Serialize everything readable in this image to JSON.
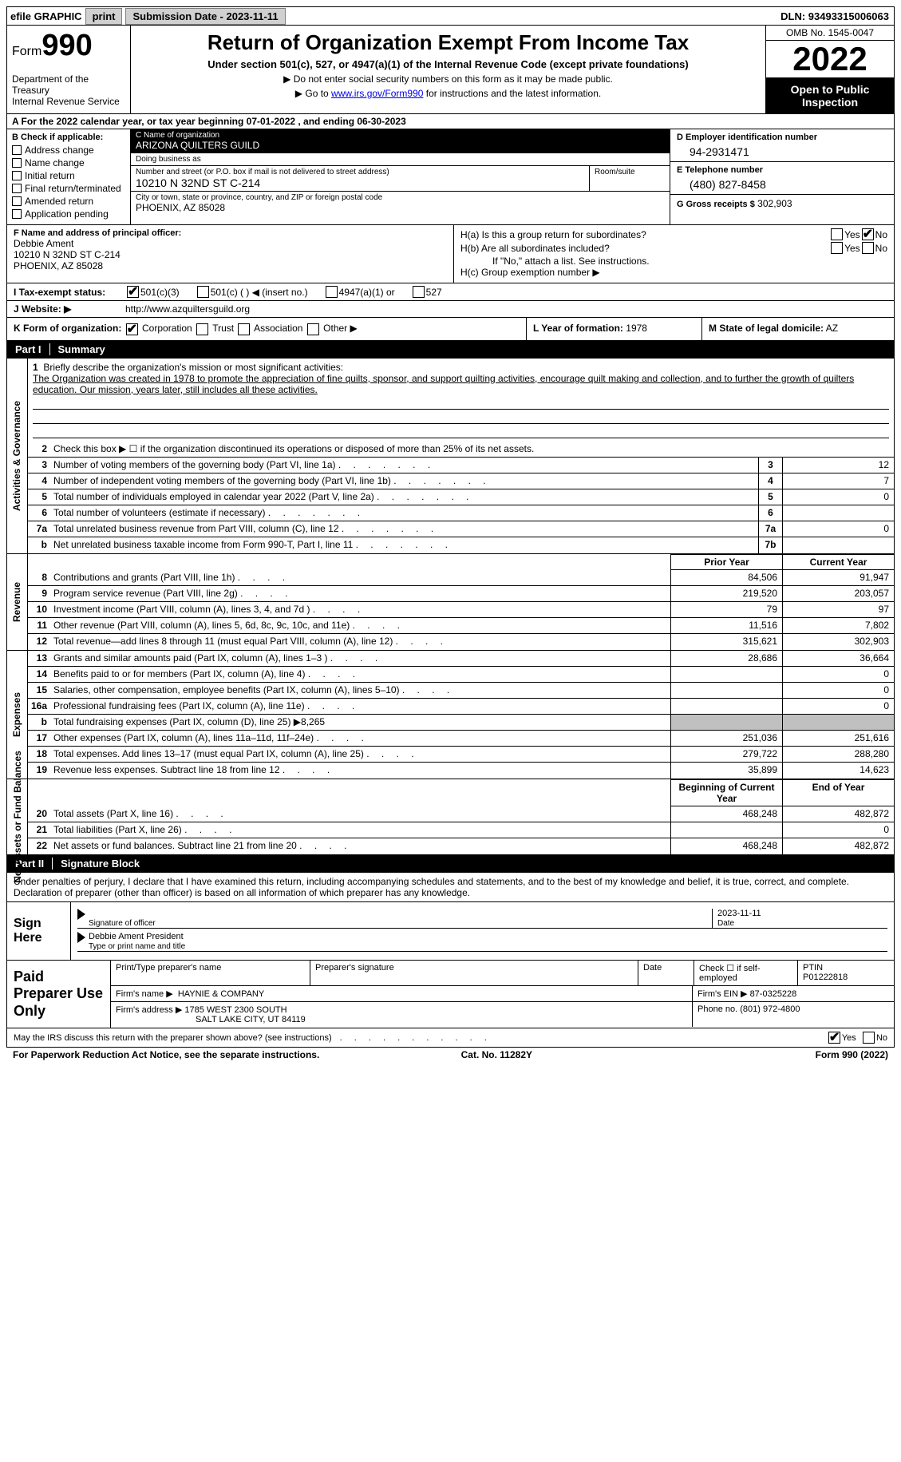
{
  "topbar": {
    "efile_label": "efile GRAPHIC",
    "print_btn": "print",
    "submission_label": "Submission Date - 2023-11-11",
    "dln_label": "DLN: 93493315006063"
  },
  "header": {
    "form_word": "Form",
    "form_num": "990",
    "dept": "Department of the Treasury\nInternal Revenue Service",
    "title": "Return of Organization Exempt From Income Tax",
    "subtitle": "Under section 501(c), 527, or 4947(a)(1) of the Internal Revenue Code (except private foundations)",
    "note1": "▶ Do not enter social security numbers on this form as it may be made public.",
    "note2_pre": "▶ Go to ",
    "note2_link": "www.irs.gov/Form990",
    "note2_post": " for instructions and the latest information.",
    "omb": "OMB No. 1545-0047",
    "year": "2022",
    "open": "Open to Public Inspection"
  },
  "rowA": "A  For the 2022 calendar year, or tax year beginning 07-01-2022   , and ending 06-30-2023",
  "blockB": {
    "label": "B Check if applicable:",
    "items": [
      "Address change",
      "Name change",
      "Initial return",
      "Final return/terminated",
      "Amended return",
      "Application pending"
    ]
  },
  "blockC": {
    "name_lbl": "C Name of organization",
    "name": "ARIZONA QUILTERS GUILD",
    "dba_lbl": "Doing business as",
    "dba": "",
    "addr_lbl": "Number and street (or P.O. box if mail is not delivered to street address)",
    "addr": "10210 N 32ND ST C-214",
    "room_lbl": "Room/suite",
    "room": "",
    "city_lbl": "City or town, state or province, country, and ZIP or foreign postal code",
    "city": "PHOENIX, AZ  85028"
  },
  "blockD": {
    "ein_lbl": "D Employer identification number",
    "ein": "94-2931471",
    "tel_lbl": "E Telephone number",
    "tel": "(480) 827-8458",
    "gross_lbl": "G Gross receipts $",
    "gross": "302,903"
  },
  "blockF": {
    "lbl": "F  Name and address of principal officer:",
    "name": "Debbie Ament",
    "addr1": "10210 N 32ND ST C-214",
    "addr2": "PHOENIX, AZ  85028"
  },
  "blockH": {
    "a_lbl": "H(a)  Is this a group return for subordinates?",
    "a_yes": "Yes",
    "a_no": "No",
    "b_lbl": "H(b)  Are all subordinates included?",
    "b_note": "If \"No,\" attach a list. See instructions.",
    "c_lbl": "H(c)  Group exemption number ▶"
  },
  "rowI": {
    "lbl": "I   Tax-exempt status:",
    "opts": [
      "501(c)(3)",
      "501(c) (  ) ◀ (insert no.)",
      "4947(a)(1) or",
      "527"
    ]
  },
  "rowJ": {
    "lbl": "J   Website: ▶",
    "val": "http://www.azquiltersguild.org"
  },
  "rowK": {
    "lbl": "K Form of organization:",
    "opts": [
      "Corporation",
      "Trust",
      "Association",
      "Other ▶"
    ]
  },
  "rowL": {
    "lbl": "L Year of formation:",
    "val": "1978"
  },
  "rowM": {
    "lbl": "M State of legal domicile:",
    "val": "AZ"
  },
  "partI": {
    "num": "Part I",
    "title": "Summary"
  },
  "mission": {
    "line1_num": "1",
    "line1_lbl": "Briefly describe the organization's mission or most significant activities:",
    "text": "The Organization was created in 1978 to promote the appreciation of fine quilts, sponsor, and support quilting activities, encourage quilt making and collection, and to further the growth of quilters education. Our mission, years later, still includes all these activities."
  },
  "gov": {
    "tab": "Activities & Governance",
    "l2": "Check this box ▶ ☐  if the organization discontinued its operations or disposed of more than 25% of its net assets.",
    "rows": [
      {
        "n": "3",
        "t": "Number of voting members of the governing body (Part VI, line 1a)",
        "b": "3",
        "v": "12"
      },
      {
        "n": "4",
        "t": "Number of independent voting members of the governing body (Part VI, line 1b)",
        "b": "4",
        "v": "7"
      },
      {
        "n": "5",
        "t": "Total number of individuals employed in calendar year 2022 (Part V, line 2a)",
        "b": "5",
        "v": "0"
      },
      {
        "n": "6",
        "t": "Total number of volunteers (estimate if necessary)",
        "b": "6",
        "v": ""
      },
      {
        "n": "7a",
        "t": "Total unrelated business revenue from Part VIII, column (C), line 12",
        "b": "7a",
        "v": "0"
      },
      {
        "n": "b",
        "t": "Net unrelated business taxable income from Form 990-T, Part I, line 11",
        "b": "7b",
        "v": ""
      }
    ]
  },
  "rev": {
    "tab": "Revenue",
    "hdr_prior": "Prior Year",
    "hdr_curr": "Current Year",
    "rows": [
      {
        "n": "8",
        "t": "Contributions and grants (Part VIII, line 1h)",
        "p": "84,506",
        "c": "91,947"
      },
      {
        "n": "9",
        "t": "Program service revenue (Part VIII, line 2g)",
        "p": "219,520",
        "c": "203,057"
      },
      {
        "n": "10",
        "t": "Investment income (Part VIII, column (A), lines 3, 4, and 7d )",
        "p": "79",
        "c": "97"
      },
      {
        "n": "11",
        "t": "Other revenue (Part VIII, column (A), lines 5, 6d, 8c, 9c, 10c, and 11e)",
        "p": "11,516",
        "c": "7,802"
      },
      {
        "n": "12",
        "t": "Total revenue—add lines 8 through 11 (must equal Part VIII, column (A), line 12)",
        "p": "315,621",
        "c": "302,903"
      }
    ]
  },
  "exp": {
    "tab": "Expenses",
    "rows": [
      {
        "n": "13",
        "t": "Grants and similar amounts paid (Part IX, column (A), lines 1–3 )",
        "p": "28,686",
        "c": "36,664"
      },
      {
        "n": "14",
        "t": "Benefits paid to or for members (Part IX, column (A), line 4)",
        "p": "",
        "c": "0"
      },
      {
        "n": "15",
        "t": "Salaries, other compensation, employee benefits (Part IX, column (A), lines 5–10)",
        "p": "",
        "c": "0"
      },
      {
        "n": "16a",
        "t": "Professional fundraising fees (Part IX, column (A), line 11e)",
        "p": "",
        "c": "0"
      },
      {
        "n": "b",
        "t": "Total fundraising expenses (Part IX, column (D), line 25) ▶8,265",
        "p": "grey",
        "c": "grey"
      },
      {
        "n": "17",
        "t": "Other expenses (Part IX, column (A), lines 11a–11d, 11f–24e)",
        "p": "251,036",
        "c": "251,616"
      },
      {
        "n": "18",
        "t": "Total expenses. Add lines 13–17 (must equal Part IX, column (A), line 25)",
        "p": "279,722",
        "c": "288,280"
      },
      {
        "n": "19",
        "t": "Revenue less expenses. Subtract line 18 from line 12",
        "p": "35,899",
        "c": "14,623"
      }
    ]
  },
  "net": {
    "tab": "Net Assets or Fund Balances",
    "hdr_beg": "Beginning of Current Year",
    "hdr_end": "End of Year",
    "rows": [
      {
        "n": "20",
        "t": "Total assets (Part X, line 16)",
        "p": "468,248",
        "c": "482,872"
      },
      {
        "n": "21",
        "t": "Total liabilities (Part X, line 26)",
        "p": "",
        "c": "0"
      },
      {
        "n": "22",
        "t": "Net assets or fund balances. Subtract line 21 from line 20",
        "p": "468,248",
        "c": "482,872"
      }
    ]
  },
  "partII": {
    "num": "Part II",
    "title": "Signature Block"
  },
  "sig": {
    "decl": "Under penalties of perjury, I declare that I have examined this return, including accompanying schedules and statements, and to the best of my knowledge and belief, it is true, correct, and complete. Declaration of preparer (other than officer) is based on all information of which preparer has any knowledge.",
    "sign_here": "Sign Here",
    "sig_officer_lbl": "Signature of officer",
    "date_lbl": "Date",
    "date_val": "2023-11-11",
    "name_title": "Debbie Ament  President",
    "name_title_lbl": "Type or print name and title",
    "paid_lbl": "Paid Preparer Use Only",
    "prep_name_lbl": "Print/Type preparer's name",
    "prep_sig_lbl": "Preparer's signature",
    "prep_date_lbl": "Date",
    "self_emp": "Check ☐ if self-employed",
    "ptin_lbl": "PTIN",
    "ptin": "P01222818",
    "firm_name_lbl": "Firm's name  ▶",
    "firm_name": "HAYNIE & COMPANY",
    "firm_ein_lbl": "Firm's EIN ▶",
    "firm_ein": "87-0325228",
    "firm_addr_lbl": "Firm's address ▶",
    "firm_addr1": "1785 WEST 2300 SOUTH",
    "firm_addr2": "SALT LAKE CITY, UT  84119",
    "phone_lbl": "Phone no.",
    "phone": "(801) 972-4800",
    "discuss": "May the IRS discuss this return with the preparer shown above? (see instructions)",
    "yes": "Yes",
    "no": "No"
  },
  "footer": {
    "left": "For Paperwork Reduction Act Notice, see the separate instructions.",
    "mid": "Cat. No. 11282Y",
    "right": "Form 990 (2022)"
  }
}
